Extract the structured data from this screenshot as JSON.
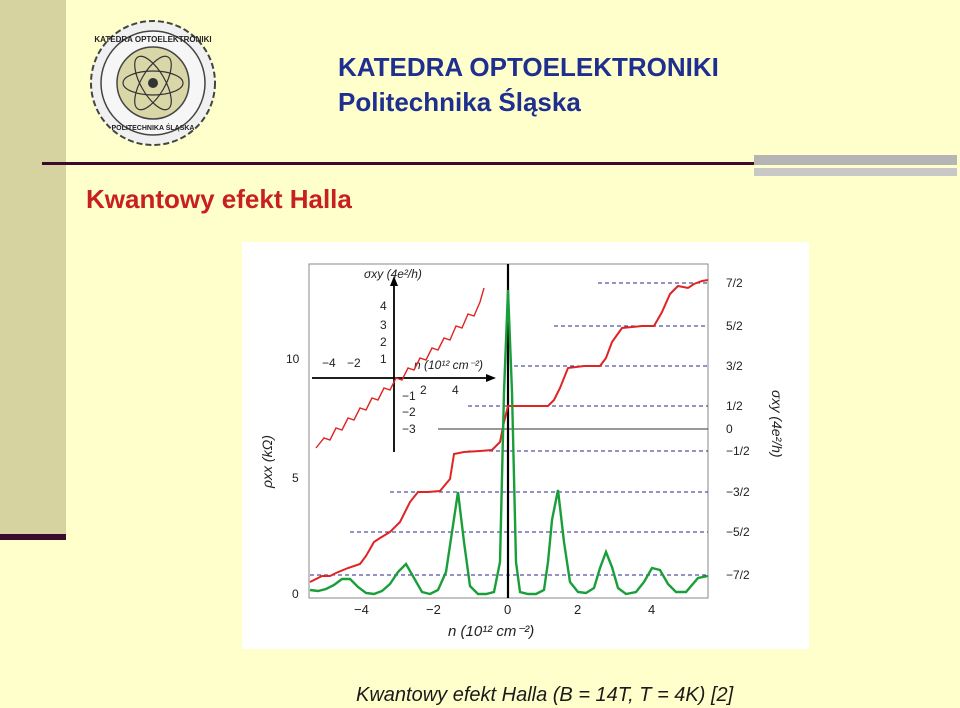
{
  "header": {
    "department": "KATEDRA OPTOELEKTRONIKI",
    "university": "Politechnika Śląska"
  },
  "slide": {
    "title": "Kwantowy efekt Halla",
    "caption": "Kwantowy efekt Halla (B = 14T, T = 4K) [2]"
  },
  "figure": {
    "left_axis_label": "ρxx (kΩ)",
    "left_ticks": [
      "0",
      "5",
      "10"
    ],
    "bottom_axis_label": "n (10¹² cm⁻²)",
    "bottom_ticks": [
      "−4",
      "−2",
      "0",
      "2",
      "4"
    ],
    "right_axis_label": "σxy (4e²/h)",
    "right_ticks": [
      "7/2",
      "5/2",
      "3/2",
      "1/2",
      "0",
      "−1/2",
      "−3/2",
      "−5/2",
      "−7/2"
    ],
    "inset": {
      "y_label": "σxy (4e²/h)",
      "x_label": "n (10¹² cm⁻²)",
      "y_ticks": [
        "4",
        "3",
        "2",
        "1",
        "−1",
        "−2",
        "−3"
      ],
      "x_ticks": [
        "−4",
        "−2",
        "2",
        "4"
      ]
    },
    "colors": {
      "sigma_xy": "#e02424",
      "rho_xx": "#1a9e3a",
      "axis": "#000000",
      "dashed": "#2a2a8a"
    }
  }
}
